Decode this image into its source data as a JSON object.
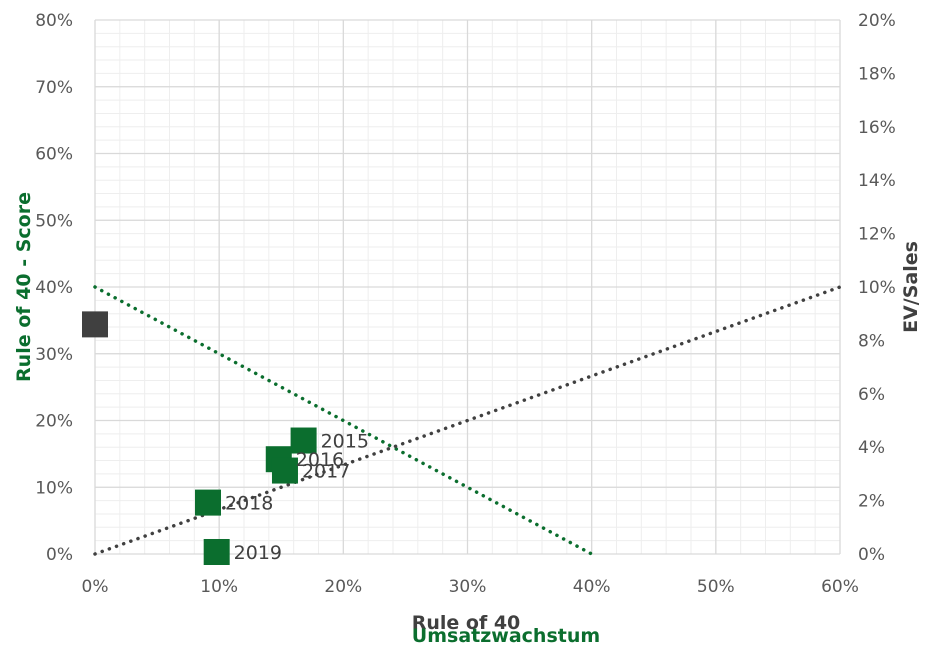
{
  "chart_data": {
    "type": "scatter",
    "xlabel": "Rule of 40",
    "xlabel_secondary": "Umsatzwachstum",
    "ylabel": "Rule of 40 - Score",
    "y2label": "EV/Sales",
    "xlim": [
      0,
      60
    ],
    "ylim": [
      0,
      80
    ],
    "y2lim": [
      0,
      20
    ],
    "x_ticks": [
      "0%",
      "10%",
      "20%",
      "30%",
      "40%",
      "50%",
      "60%"
    ],
    "y_ticks": [
      "0%",
      "10%",
      "20%",
      "30%",
      "40%",
      "50%",
      "60%",
      "70%",
      "80%"
    ],
    "y2_ticks": [
      "0%",
      "2%",
      "4%",
      "6%",
      "8%",
      "10%",
      "12%",
      "14%",
      "16%",
      "18%",
      "20%"
    ],
    "grid": true,
    "colors": {
      "green": "#0b6e2e",
      "dark": "#404040",
      "grid_major": "#d9d9d9",
      "grid_minor": "#eeeeee"
    },
    "series": [
      {
        "axis": "primary",
        "color": "#0b6e2e",
        "marker": "square",
        "points": [
          {
            "x": 16.8,
            "y": 17,
            "label": "2015"
          },
          {
            "x": 14.8,
            "y": 14.2,
            "label": "2016"
          },
          {
            "x": 15.3,
            "y": 12.5,
            "label": "2017"
          },
          {
            "x": 9.1,
            "y": 7.7,
            "label": "2018"
          },
          {
            "x": 9.8,
            "y": 0.3,
            "label": "2019"
          }
        ]
      },
      {
        "axis": "secondary",
        "color": "#404040",
        "marker": "square",
        "points": [
          {
            "x": 0,
            "y": 8.6,
            "label": ""
          }
        ]
      }
    ],
    "reference_lines": [
      {
        "axis": "primary",
        "color": "#0b6e2e",
        "style": "dotted",
        "from": [
          0,
          40
        ],
        "to": [
          40,
          0
        ]
      },
      {
        "axis": "secondary",
        "color": "#404040",
        "style": "dotted",
        "from": [
          0,
          0
        ],
        "to": [
          60,
          10
        ]
      }
    ]
  }
}
